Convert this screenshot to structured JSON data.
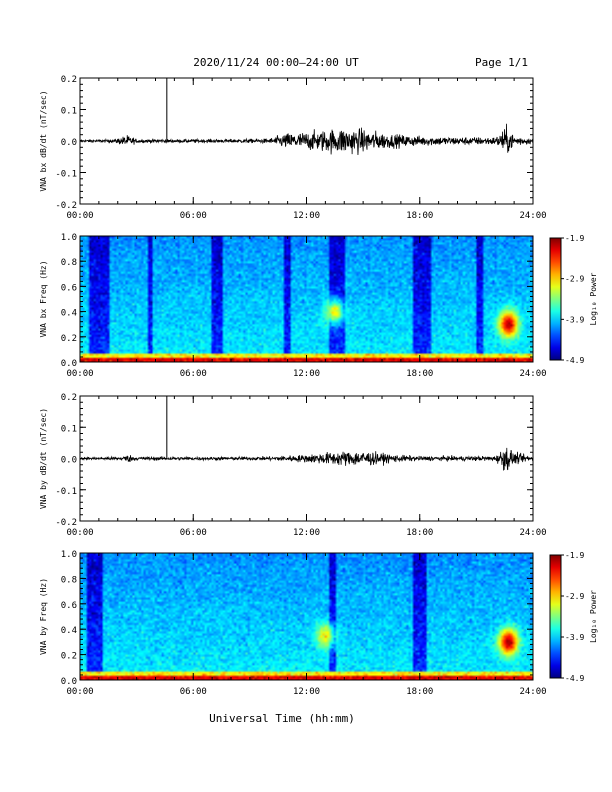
{
  "header": {
    "title": "2020/11/24  00:00–24:00 UT",
    "page": "Page 1/1"
  },
  "footer": {
    "xlabel": "Universal Time (hh:mm)"
  },
  "chart_data": [
    {
      "type": "line",
      "ylabel": "VNA bx dB/dt (nT/sec)",
      "x_ticks": [
        "00:00",
        "06:00",
        "12:00",
        "18:00",
        "24:00"
      ],
      "y_ticks": [
        "-0.2",
        "-0.1",
        "0.0",
        "0.1",
        "0.2"
      ],
      "xlim": [
        0,
        24
      ],
      "ylim": [
        -0.2,
        0.2
      ],
      "spike": {
        "x": 4.6,
        "y": 0.2
      },
      "noise_envelope": [
        [
          0.0,
          0.006
        ],
        [
          1.8,
          0.008
        ],
        [
          2.5,
          0.03
        ],
        [
          3.0,
          0.01
        ],
        [
          5.0,
          0.009
        ],
        [
          8.0,
          0.009
        ],
        [
          10.0,
          0.012
        ],
        [
          11.0,
          0.04
        ],
        [
          12.5,
          0.05
        ],
        [
          14.0,
          0.07
        ],
        [
          15.0,
          0.06
        ],
        [
          16.5,
          0.035
        ],
        [
          18.0,
          0.025
        ],
        [
          20.0,
          0.02
        ],
        [
          22.0,
          0.02
        ],
        [
          22.6,
          0.07
        ],
        [
          23.0,
          0.03
        ],
        [
          24.0,
          0.012
        ]
      ]
    },
    {
      "type": "heatmap",
      "ylabel": "VNA bx Freq (Hz)",
      "x_ticks": [
        "00:00",
        "06:00",
        "12:00",
        "18:00",
        "24:00"
      ],
      "y_ticks": [
        "0.0",
        "0.2",
        "0.4",
        "0.6",
        "0.8",
        "1.0"
      ],
      "xlim": [
        0,
        24
      ],
      "ylim": [
        0.0,
        1.0
      ],
      "colorbar": {
        "label": "Log₁₀ Power",
        "ticks": [
          "-1.9",
          "-2.9",
          "-3.9",
          "-4.9"
        ],
        "range": [
          -4.9,
          -1.9
        ]
      },
      "dark_bands": [
        [
          0.5,
          1.5
        ],
        [
          3.6,
          3.8
        ],
        [
          6.9,
          7.5
        ],
        [
          10.8,
          11.2
        ],
        [
          13.2,
          14.0
        ],
        [
          17.6,
          18.6
        ],
        [
          21.0,
          21.4
        ]
      ],
      "hotspots": [
        {
          "t": 22.7,
          "f": 0.3,
          "power": -2.0
        },
        {
          "t": 13.5,
          "f": 0.4,
          "power": -3.0
        }
      ]
    },
    {
      "type": "line",
      "ylabel": "VNA by dB/dt (nT/sec)",
      "x_ticks": [
        "00:00",
        "06:00",
        "12:00",
        "18:00",
        "24:00"
      ],
      "y_ticks": [
        "-0.2",
        "-0.1",
        "0.0",
        "0.1",
        "0.2"
      ],
      "xlim": [
        0,
        24
      ],
      "ylim": [
        -0.2,
        0.2
      ],
      "spike": {
        "x": 4.6,
        "y": 0.2
      },
      "noise_envelope": [
        [
          0.0,
          0.006
        ],
        [
          2.0,
          0.008
        ],
        [
          2.6,
          0.02
        ],
        [
          3.0,
          0.009
        ],
        [
          8.0,
          0.008
        ],
        [
          10.0,
          0.01
        ],
        [
          12.0,
          0.02
        ],
        [
          13.5,
          0.035
        ],
        [
          15.0,
          0.04
        ],
        [
          16.5,
          0.02
        ],
        [
          18.0,
          0.012
        ],
        [
          22.0,
          0.012
        ],
        [
          22.6,
          0.07
        ],
        [
          23.0,
          0.03
        ],
        [
          24.0,
          0.01
        ]
      ]
    },
    {
      "type": "heatmap",
      "ylabel": "VNA by Freq (Hz)",
      "x_ticks": [
        "00:00",
        "06:00",
        "12:00",
        "18:00",
        "24:00"
      ],
      "y_ticks": [
        "0.0",
        "0.2",
        "0.4",
        "0.6",
        "0.8",
        "1.0"
      ],
      "xlim": [
        0,
        24
      ],
      "ylim": [
        0.0,
        1.0
      ],
      "colorbar": {
        "label": "Log₁₀ Power",
        "ticks": [
          "-1.9",
          "-2.9",
          "-3.9",
          "-4.9"
        ],
        "range": [
          -4.9,
          -1.9
        ]
      },
      "dark_bands": [
        [
          0.4,
          1.2
        ],
        [
          13.2,
          13.6
        ],
        [
          17.6,
          18.4
        ]
      ],
      "hotspots": [
        {
          "t": 22.7,
          "f": 0.3,
          "power": -2.0
        },
        {
          "t": 13.0,
          "f": 0.35,
          "power": -3.0
        }
      ]
    }
  ]
}
